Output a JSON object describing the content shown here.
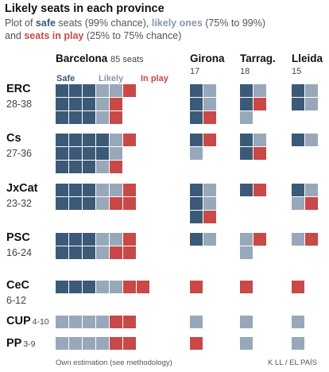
{
  "title": "Likely seats in each province",
  "subtitle": {
    "line1_a": "Plot of ",
    "line1_safe": "safe",
    "line1_b": " seats (99% chance), ",
    "line1_likely": "likely ones",
    "line1_c": " (75% to 99%)",
    "line2_a": "and ",
    "line2_inplay": "seats in play",
    "line2_b": " (25% to 75% chance)"
  },
  "legend": {
    "safe": "Safe",
    "likely": "Likely",
    "in_play": "In play"
  },
  "colors": {
    "safe": "#3b5a77",
    "likely": "#98a8ba",
    "in_play": "#c94848"
  },
  "footer": {
    "left": "Own estimation (see methodology)",
    "right": "K LL / EL PAÍS"
  },
  "chart_data": {
    "type": "waffle",
    "provinces": [
      {
        "name": "Barcelona",
        "seats_label": "85 seats"
      },
      {
        "name": "Girona",
        "seats_label": "17"
      },
      {
        "name": "Tarrag.",
        "seats_label": "18"
      },
      {
        "name": "Lleida",
        "seats_label": "15"
      }
    ],
    "parties": [
      {
        "name": "ERC",
        "range": "28-38",
        "seats": [
          {
            "safe": 9,
            "likely": 4,
            "in_play": 3
          },
          {
            "safe": 3,
            "likely": 2,
            "in_play": 1
          },
          {
            "safe": 2,
            "likely": 2,
            "in_play": 1
          },
          {
            "safe": 2,
            "likely": 2,
            "in_play": 0
          }
        ]
      },
      {
        "name": "Cs",
        "range": "27-36",
        "seats": [
          {
            "safe": 11,
            "likely": 3,
            "in_play": 2
          },
          {
            "safe": 1,
            "likely": 1,
            "in_play": 1
          },
          {
            "safe": 2,
            "likely": 1,
            "in_play": 1
          },
          {
            "safe": 1,
            "likely": 1,
            "in_play": 0
          }
        ]
      },
      {
        "name": "JxCat",
        "range": "23-32",
        "seats": [
          {
            "safe": 6,
            "likely": 3,
            "in_play": 3
          },
          {
            "safe": 3,
            "likely": 2,
            "in_play": 1
          },
          {
            "safe": 1,
            "likely": 0,
            "in_play": 1
          },
          {
            "safe": 1,
            "likely": 2,
            "in_play": 1
          }
        ]
      },
      {
        "name": "PSC",
        "range": "16-24",
        "seats": [
          {
            "safe": 6,
            "likely": 3,
            "in_play": 3
          },
          {
            "safe": 1,
            "likely": 1,
            "in_play": 0
          },
          {
            "safe": 0,
            "likely": 2,
            "in_play": 1
          },
          {
            "safe": 0,
            "likely": 1,
            "in_play": 1
          }
        ]
      },
      {
        "name": "CeC",
        "range": "6-12",
        "seats": [
          {
            "safe": 3,
            "likely": 2,
            "in_play": 2
          },
          {
            "safe": 0,
            "likely": 0,
            "in_play": 1
          },
          {
            "safe": 0,
            "likely": 0,
            "in_play": 1
          },
          {
            "safe": 0,
            "likely": 0,
            "in_play": 1
          }
        ]
      },
      {
        "name": "CUP",
        "range": "4-10",
        "seats": [
          {
            "safe": 0,
            "likely": 4,
            "in_play": 2
          },
          {
            "safe": 0,
            "likely": 1,
            "in_play": 0
          },
          {
            "safe": 0,
            "likely": 1,
            "in_play": 0
          },
          {
            "safe": 0,
            "likely": 1,
            "in_play": 0
          }
        ]
      },
      {
        "name": "PP",
        "range": "3-9",
        "seats": [
          {
            "safe": 0,
            "likely": 4,
            "in_play": 2
          },
          {
            "safe": 0,
            "likely": 0,
            "in_play": 1
          },
          {
            "safe": 0,
            "likely": 1,
            "in_play": 0
          },
          {
            "safe": 0,
            "likely": 1,
            "in_play": 0
          }
        ]
      }
    ]
  }
}
